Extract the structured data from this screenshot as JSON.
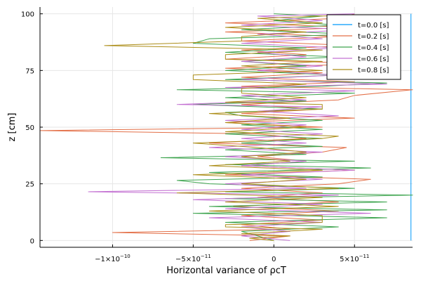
{
  "chart_data": {
    "type": "line",
    "xlabel": "Horizontal variance of ρcT",
    "ylabel": "z [cm]",
    "xlim": [
      -1.45e-10,
      8.6e-11
    ],
    "ylim": [
      -3,
      103
    ],
    "grid": true,
    "legend_position": "top-right",
    "x_ticks": [
      {
        "value": -1e-10,
        "mantissa": "−1×10",
        "exp": "−10"
      },
      {
        "value": -5e-11,
        "mantissa": "−5×10",
        "exp": "−11"
      },
      {
        "value": 0,
        "mantissa": "0",
        "exp": ""
      },
      {
        "value": 5e-11,
        "mantissa": "5×10",
        "exp": "−11"
      }
    ],
    "y_ticks": [
      0,
      25,
      50,
      75,
      100
    ],
    "series": [
      {
        "name": "t=0.0 [s]",
        "color": "#009AFA",
        "points": [
          [
            8.5e-11,
            0
          ],
          [
            8.5e-11,
            100
          ]
        ]
      },
      {
        "name": "t=0.2 [s]",
        "color": "#E36F47",
        "points": [
          [
            -1.5e-11,
            0
          ],
          [
            1e-11,
            2
          ],
          [
            -1e-10,
            3.5
          ],
          [
            1e-11,
            5
          ],
          [
            -2e-11,
            7
          ],
          [
            3e-11,
            9
          ],
          [
            -2e-11,
            11
          ],
          [
            4e-11,
            13
          ],
          [
            -2.5e-11,
            15
          ],
          [
            4e-11,
            17
          ],
          [
            -1e-11,
            19
          ],
          [
            3e-11,
            21
          ],
          [
            -2e-11,
            23
          ],
          [
            4e-11,
            25
          ],
          [
            6e-11,
            27
          ],
          [
            -3e-11,
            29
          ],
          [
            5e-11,
            31
          ],
          [
            -2e-11,
            33
          ],
          [
            2e-11,
            35
          ],
          [
            -1e-11,
            37
          ],
          [
            3e-11,
            39
          ],
          [
            4.5e-11,
            41
          ],
          [
            -4e-11,
            43
          ],
          [
            2e-11,
            45
          ],
          [
            -1e-11,
            47
          ],
          [
            -1.45e-10,
            48.5
          ],
          [
            3e-11,
            50
          ],
          [
            -3e-11,
            52
          ],
          [
            5e-11,
            54
          ],
          [
            -2e-11,
            56
          ],
          [
            3e-11,
            58
          ],
          [
            -2e-11,
            60
          ],
          [
            4e-11,
            62
          ],
          [
            5e-11,
            64
          ],
          [
            8.6e-11,
            66.5
          ],
          [
            -2e-11,
            68
          ],
          [
            5e-11,
            70
          ],
          [
            -2e-11,
            72
          ],
          [
            3e-11,
            74
          ],
          [
            -3e-11,
            76
          ],
          [
            6e-11,
            78
          ],
          [
            -3e-11,
            80
          ],
          [
            2e-11,
            82
          ],
          [
            -2e-11,
            84
          ],
          [
            5e-11,
            86
          ],
          [
            -2e-11,
            88
          ],
          [
            4e-11,
            90
          ],
          [
            -3e-11,
            92
          ],
          [
            5e-11,
            94
          ],
          [
            -3e-11,
            96
          ],
          [
            4e-11,
            98
          ],
          [
            5e-11,
            100
          ]
        ]
      },
      {
        "name": "t=0.4 [s]",
        "color": "#3DA44E",
        "points": [
          [
            0,
            0
          ],
          [
            -1e-11,
            2
          ],
          [
            -2e-11,
            4
          ],
          [
            4e-11,
            6
          ],
          [
            -3e-11,
            8
          ],
          [
            7e-11,
            10
          ],
          [
            -5e-11,
            12
          ],
          [
            7e-11,
            13.5
          ],
          [
            -4e-11,
            15
          ],
          [
            7e-11,
            17
          ],
          [
            -3e-11,
            18.5
          ],
          [
            8.6e-11,
            20
          ],
          [
            -3e-11,
            21.5
          ],
          [
            5e-11,
            23
          ],
          [
            -4e-11,
            25
          ],
          [
            -6e-11,
            26.5
          ],
          [
            3e-11,
            28
          ],
          [
            -4e-11,
            30
          ],
          [
            6e-11,
            32
          ],
          [
            -3e-11,
            33.5
          ],
          [
            5e-11,
            35
          ],
          [
            -7e-11,
            36.5
          ],
          [
            2e-11,
            38
          ],
          [
            -3e-11,
            40
          ],
          [
            3e-11,
            41.5
          ],
          [
            -2e-11,
            43
          ],
          [
            3e-11,
            45
          ],
          [
            -3e-11,
            47
          ],
          [
            3e-11,
            49
          ],
          [
            -2e-11,
            51
          ],
          [
            3e-11,
            53
          ],
          [
            -2e-11,
            55
          ],
          [
            -3e-11,
            56.5
          ],
          [
            3e-11,
            58
          ],
          [
            -5e-11,
            60
          ],
          [
            2e-11,
            61.5
          ],
          [
            -3e-11,
            63
          ],
          [
            5e-11,
            65
          ],
          [
            -6e-11,
            66.5
          ],
          [
            3e-11,
            68
          ],
          [
            7e-11,
            69.5
          ],
          [
            -3e-11,
            71
          ],
          [
            4e-11,
            73
          ],
          [
            -3e-11,
            75
          ],
          [
            2e-11,
            77
          ],
          [
            -2e-11,
            79
          ],
          [
            4e-11,
            81
          ],
          [
            -3e-11,
            83
          ],
          [
            2e-11,
            85
          ],
          [
            -5e-11,
            87
          ],
          [
            -4e-11,
            89
          ],
          [
            5e-11,
            91
          ],
          [
            -2e-11,
            93
          ],
          [
            4e-11,
            95
          ],
          [
            0,
            97
          ],
          [
            3e-11,
            99
          ],
          [
            0,
            100
          ]
        ]
      },
      {
        "name": "t=0.6 [s]",
        "color": "#C371D2",
        "points": [
          [
            1e-11,
            0
          ],
          [
            -2e-11,
            2
          ],
          [
            1e-11,
            4
          ],
          [
            -2e-11,
            6
          ],
          [
            3e-11,
            8
          ],
          [
            -4e-11,
            10
          ],
          [
            6e-11,
            12
          ],
          [
            -3e-11,
            14
          ],
          [
            3e-11,
            16
          ],
          [
            -5e-11,
            18
          ],
          [
            4e-11,
            20
          ],
          [
            -1.15e-10,
            21.5
          ],
          [
            2e-11,
            23
          ],
          [
            -3e-11,
            25
          ],
          [
            3e-11,
            27
          ],
          [
            -2e-11,
            29
          ],
          [
            5e-11,
            31
          ],
          [
            -2e-11,
            33
          ],
          [
            2e-11,
            35
          ],
          [
            -3e-11,
            37
          ],
          [
            3e-11,
            39
          ],
          [
            -4e-11,
            41
          ],
          [
            2e-11,
            43
          ],
          [
            -2e-11,
            45
          ],
          [
            3e-11,
            47
          ],
          [
            -2e-11,
            49
          ],
          [
            2e-11,
            51
          ],
          [
            -3e-11,
            53
          ],
          [
            4e-11,
            55
          ],
          [
            -1e-11,
            57
          ],
          [
            3e-11,
            59
          ],
          [
            -6e-11,
            60
          ],
          [
            2e-11,
            62
          ],
          [
            -2e-11,
            64
          ],
          [
            5e-11,
            66
          ],
          [
            -3e-11,
            67.5
          ],
          [
            7e-11,
            69
          ],
          [
            -2e-11,
            71
          ],
          [
            4e-11,
            73
          ],
          [
            -1e-11,
            75
          ],
          [
            3e-11,
            77
          ],
          [
            -2e-11,
            79
          ],
          [
            2e-11,
            81
          ],
          [
            -1e-11,
            83
          ],
          [
            4e-11,
            85
          ],
          [
            -2e-11,
            87
          ],
          [
            3e-11,
            89
          ],
          [
            -1e-11,
            91
          ],
          [
            5e-11,
            93
          ],
          [
            -2e-11,
            95
          ],
          [
            3e-11,
            97
          ],
          [
            -1e-11,
            99
          ],
          [
            5e-11,
            100
          ]
        ]
      },
      {
        "name": "t=0.8 [s]",
        "color": "#AC8D18",
        "points": [
          [
            0,
            0
          ],
          [
            -1.5e-11,
            1
          ],
          [
            1e-11,
            2
          ],
          [
            -2e-11,
            3
          ],
          [
            3e-11,
            5
          ],
          [
            -3e-11,
            6
          ],
          [
            -3e-11,
            7
          ],
          [
            1e-11,
            7.5
          ],
          [
            3e-11,
            8
          ],
          [
            3e-11,
            11
          ],
          [
            -4e-11,
            13
          ],
          [
            4e-11,
            15
          ],
          [
            -3e-11,
            17
          ],
          [
            3e-11,
            19
          ],
          [
            -6e-11,
            21
          ],
          [
            4e-11,
            23
          ],
          [
            -2e-11,
            25
          ],
          [
            2e-11,
            27
          ],
          [
            -5e-11,
            29
          ],
          [
            3e-11,
            31
          ],
          [
            -4e-11,
            33
          ],
          [
            1e-11,
            35
          ],
          [
            -2e-11,
            37
          ],
          [
            2e-11,
            39
          ],
          [
            -1e-11,
            41
          ],
          [
            -5e-11,
            43
          ],
          [
            3e-11,
            45
          ],
          [
            4e-11,
            46
          ],
          [
            -3e-11,
            48
          ],
          [
            2e-11,
            50
          ],
          [
            -3e-11,
            52
          ],
          [
            1e-11,
            54
          ],
          [
            -4e-11,
            56
          ],
          [
            3e-11,
            58
          ],
          [
            3e-11,
            60
          ],
          [
            -3e-11,
            61
          ],
          [
            2e-11,
            63
          ],
          [
            -2e-11,
            65
          ],
          [
            -2e-11,
            67
          ],
          [
            2e-11,
            69
          ],
          [
            -5e-11,
            71
          ],
          [
            -5e-11,
            73
          ],
          [
            3e-11,
            75
          ],
          [
            -2e-11,
            77
          ],
          [
            3e-11,
            79
          ],
          [
            -3e-11,
            80
          ],
          [
            -3e-11,
            82
          ],
          [
            3e-11,
            84
          ],
          [
            -1.05e-10,
            86
          ],
          [
            -2e-11,
            88
          ],
          [
            -2e-11,
            90
          ],
          [
            2e-11,
            92
          ],
          [
            -3e-11,
            94
          ],
          [
            3e-11,
            96
          ],
          [
            -1e-11,
            98
          ],
          [
            5e-11,
            99.5
          ]
        ]
      }
    ]
  }
}
